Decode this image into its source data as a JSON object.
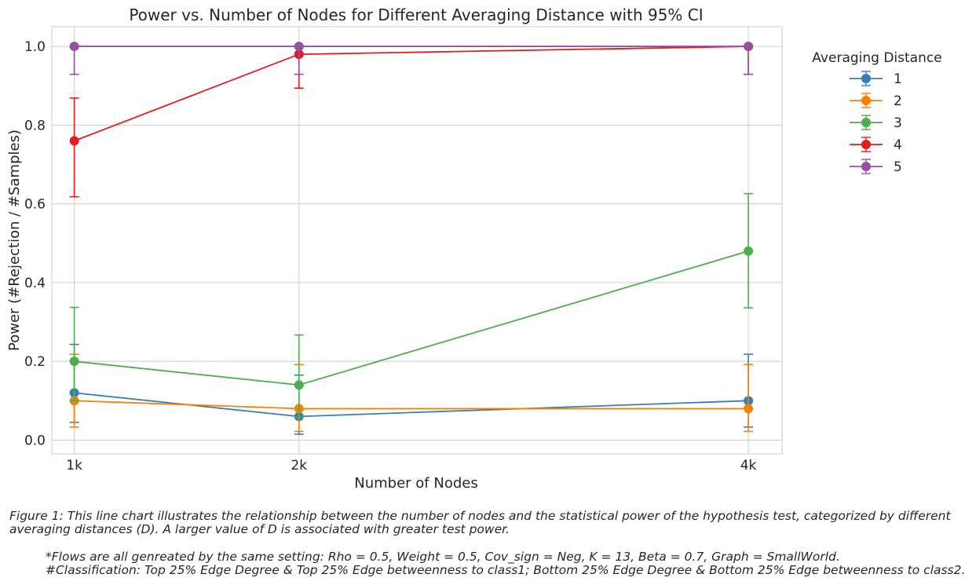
{
  "chart_data": {
    "type": "line",
    "title": "Power vs. Number of Nodes for Different Averaging Distance with 95% CI",
    "xlabel": "Number of Nodes",
    "ylabel": "Power (#Rejection / #Samples)",
    "x_values": [
      1,
      2,
      4
    ],
    "x_tick_labels": [
      "1k",
      "2k",
      "4k"
    ],
    "xlim": [
      0.9,
      4.15
    ],
    "ylim": [
      -0.035,
      1.05
    ],
    "y_ticks": [
      "0.0",
      "0.2",
      "0.4",
      "0.6",
      "0.8",
      "1.0"
    ],
    "y_tick_values": [
      0,
      0.2,
      0.4,
      0.6,
      0.8,
      1.0
    ],
    "grid": true,
    "legend_title": "Averaging Distance",
    "legend_position": "outside upper right",
    "series": [
      {
        "name": "1",
        "color": "#377eb8",
        "values": [
          0.12,
          0.06,
          0.1
        ],
        "ci_lower": [
          0.045,
          0.015,
          0.033
        ],
        "ci_upper": [
          0.243,
          0.165,
          0.218
        ]
      },
      {
        "name": "2",
        "color": "#ff7f00",
        "values": [
          0.1,
          0.08,
          0.08
        ],
        "ci_lower": [
          0.033,
          0.022,
          0.022
        ],
        "ci_upper": [
          0.218,
          0.192,
          0.192
        ]
      },
      {
        "name": "3",
        "color": "#4daf4a",
        "values": [
          0.2,
          0.14,
          0.48
        ],
        "ci_lower": [
          0.1,
          0.058,
          0.336
        ],
        "ci_upper": [
          0.337,
          0.267,
          0.626
        ]
      },
      {
        "name": "4",
        "color": "#e41a1c",
        "values": [
          0.76,
          0.98,
          1.0
        ],
        "ci_lower": [
          0.618,
          0.894,
          0.929
        ],
        "ci_upper": [
          0.869,
          1.0,
          1.0
        ]
      },
      {
        "name": "5",
        "color": "#984ea3",
        "values": [
          1.0,
          1.0,
          1.0
        ],
        "ci_lower": [
          0.929,
          0.929,
          0.929
        ],
        "ci_upper": [
          1.0,
          1.0,
          1.0
        ]
      }
    ]
  },
  "caption": {
    "figure": "Figure 1: This line chart illustrates the relationship between the number of nodes and the statistical power of the hypothesis test, categorized by different averaging distances (D). A larger value of D is associated with greater test power.",
    "note_line1": "*Flows are all genreated by the same setting: Rho = 0.5, Weight = 0.5, Cov_sign = Neg, K = 13, Beta = 0.7, Graph = SmallWorld.",
    "note_line2": "#Classification: Top 25% Edge Degree & Top 25% Edge betweenness to class1; Bottom 25% Edge Degree & Bottom 25% Edge betweenness to class2."
  }
}
